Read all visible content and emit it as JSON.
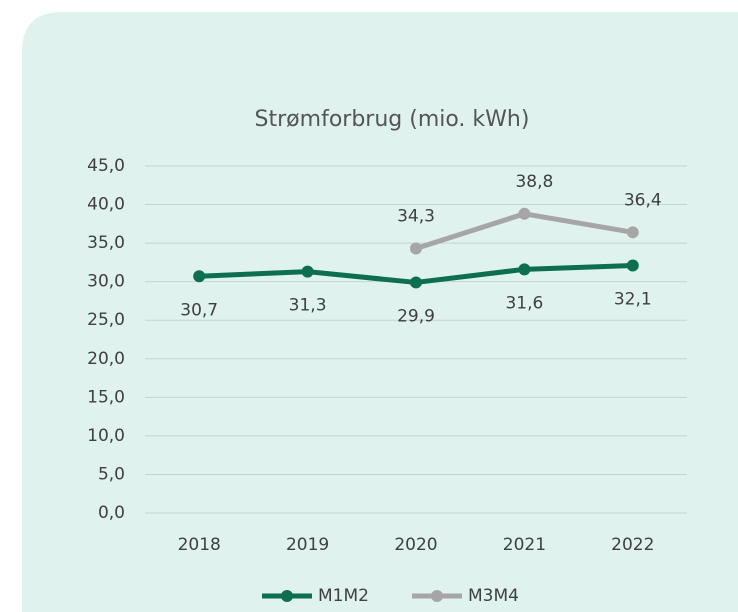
{
  "chart_data": {
    "type": "line",
    "title": "Strømforbrug (mio. kWh)",
    "categories": [
      "2018",
      "2019",
      "2020",
      "2021",
      "2022"
    ],
    "series": [
      {
        "name": "M1M2",
        "color": "#0e6e50",
        "values": [
          30.7,
          31.3,
          29.9,
          31.6,
          32.1
        ],
        "value_labels": [
          "30,7",
          "31,3",
          "29,9",
          "31,6",
          "32,1"
        ]
      },
      {
        "name": "M3M4",
        "color": "#a6a6a6",
        "values": [
          null,
          null,
          34.3,
          38.8,
          36.4
        ],
        "value_labels": [
          null,
          null,
          "34,3",
          "38,8",
          "36,4"
        ]
      }
    ],
    "ylim": [
      0,
      45
    ],
    "yticks": [
      {
        "value": 0,
        "label": "0,0"
      },
      {
        "value": 5,
        "label": "5,0"
      },
      {
        "value": 10,
        "label": "10,0"
      },
      {
        "value": 15,
        "label": "15,0"
      },
      {
        "value": 20,
        "label": "20,0"
      },
      {
        "value": 25,
        "label": "25,0"
      },
      {
        "value": 30,
        "label": "30,0"
      },
      {
        "value": 35,
        "label": "35,0"
      },
      {
        "value": 40,
        "label": "40,0"
      },
      {
        "value": 45,
        "label": "45,0"
      }
    ],
    "grid": true,
    "legend": "bottom"
  }
}
